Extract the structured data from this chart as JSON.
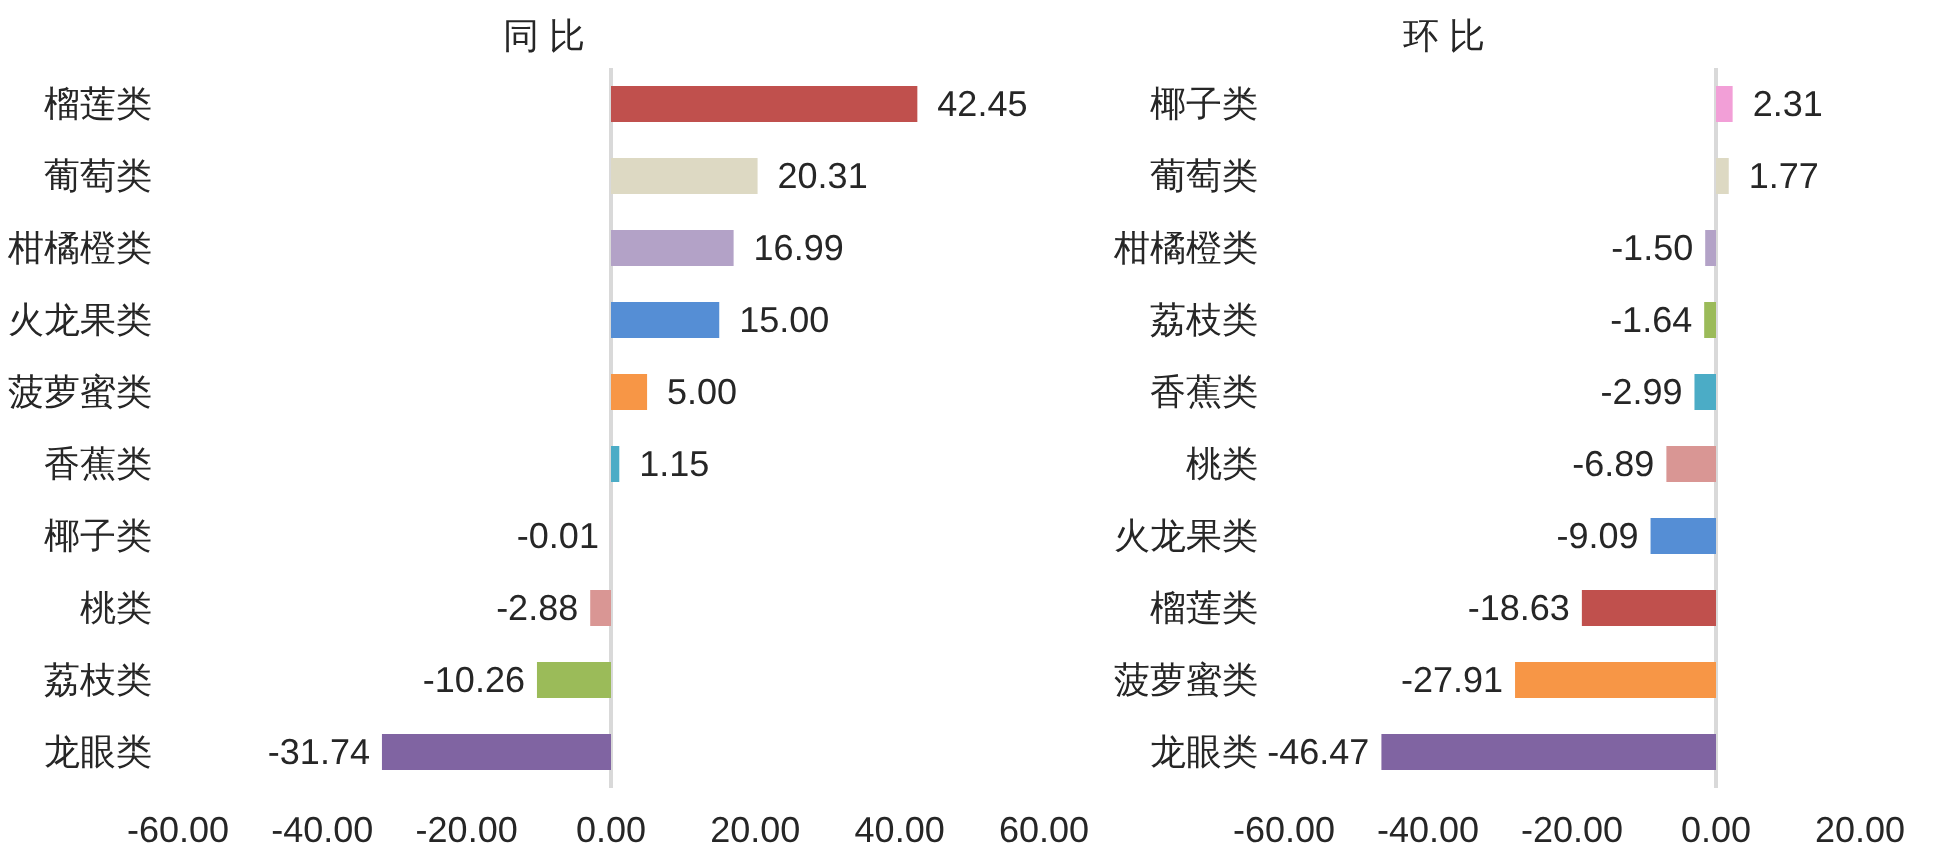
{
  "chart_data": [
    {
      "type": "bar",
      "orientation": "horizontal",
      "title": "同 比",
      "categories": [
        "榴莲类",
        "葡萄类",
        "柑橘橙类",
        "火龙果类",
        "菠萝蜜类",
        "香蕉类",
        "椰子类",
        "桃类",
        "荔枝类",
        "龙眼类"
      ],
      "values": [
        42.45,
        20.31,
        16.99,
        15.0,
        5.0,
        1.15,
        -0.01,
        -2.88,
        -10.26,
        -31.74
      ],
      "value_labels": [
        "42.45",
        "20.31",
        "16.99",
        "15.00",
        "5.00",
        "1.15",
        "-0.01",
        "-2.88",
        "-10.26",
        "-31.74"
      ],
      "colors": [
        "#c0504d",
        "#ddd9c3",
        "#b3a2c7",
        "#558ed5",
        "#f79646",
        "#4bacc6",
        "#f29fd7",
        "#d99694",
        "#9bbb59",
        "#8064a2"
      ],
      "xlim": [
        -60,
        60
      ],
      "xticks": [
        {
          "value": -60,
          "label": "-60.00"
        },
        {
          "value": -40,
          "label": "-40.00"
        },
        {
          "value": -20,
          "label": "-20.00"
        },
        {
          "value": 0,
          "label": "0.00"
        },
        {
          "value": 20,
          "label": "20.00"
        },
        {
          "value": 40,
          "label": "40.00"
        },
        {
          "value": 60,
          "label": "60.00"
        }
      ]
    },
    {
      "type": "bar",
      "orientation": "horizontal",
      "title": "环 比",
      "categories": [
        "椰子类",
        "葡萄类",
        "柑橘橙类",
        "荔枝类",
        "香蕉类",
        "桃类",
        "火龙果类",
        "榴莲类",
        "菠萝蜜类",
        "龙眼类"
      ],
      "values": [
        2.31,
        1.77,
        -1.5,
        -1.64,
        -2.99,
        -6.89,
        -9.09,
        -18.63,
        -27.91,
        -46.47
      ],
      "value_labels": [
        "2.31",
        "1.77",
        "-1.50",
        "-1.64",
        "-2.99",
        "-6.89",
        "-9.09",
        "-18.63",
        "-27.91",
        "-46.47"
      ],
      "colors": [
        "#f29fd7",
        "#ddd9c3",
        "#b3a2c7",
        "#9bbb59",
        "#4bacc6",
        "#d99694",
        "#558ed5",
        "#c0504d",
        "#f79646",
        "#8064a2"
      ],
      "xlim": [
        -60,
        20
      ],
      "xticks": [
        {
          "value": -60,
          "label": "-60.00"
        },
        {
          "value": -40,
          "label": "-40.00"
        },
        {
          "value": -20,
          "label": "-20.00"
        },
        {
          "value": 0,
          "label": "0.00"
        },
        {
          "value": 20,
          "label": "20.00"
        }
      ]
    }
  ]
}
